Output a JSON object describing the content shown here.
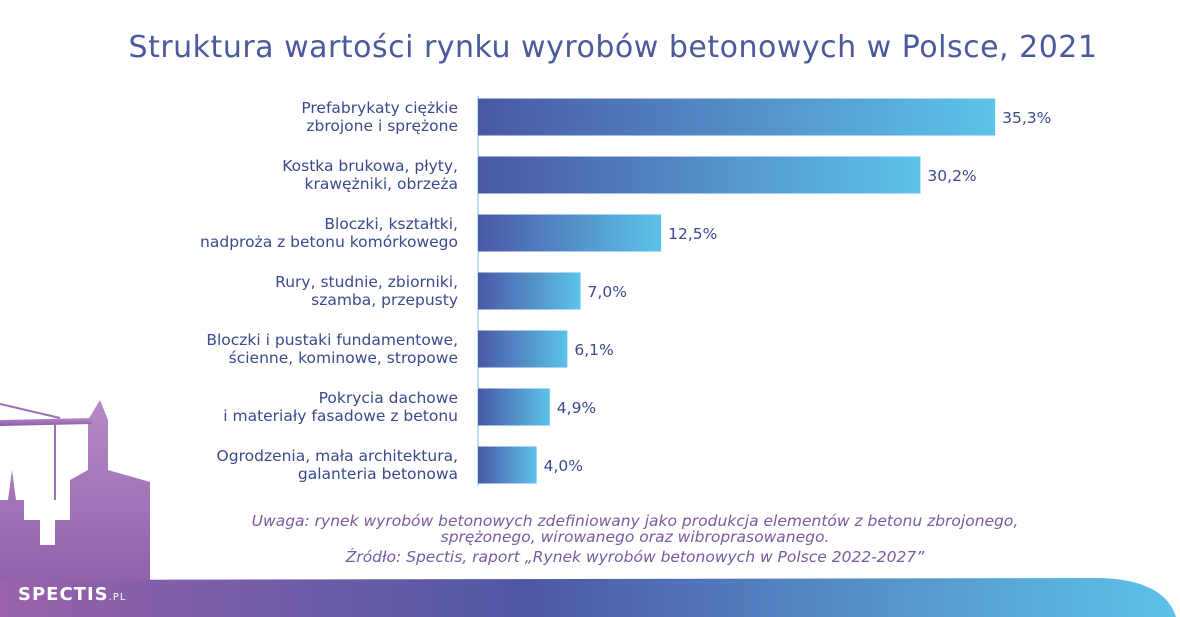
{
  "chart_data": {
    "type": "bar",
    "orientation": "horizontal",
    "title": "Struktura wartości rynku wyrobów betonowych w Polsce, 2021",
    "categories": [
      "Prefabrykaty ciężkie\nzbrojone i sprężone",
      "Kostka brukowa, płyty,\nkrawężniki, obrzeża",
      "Bloczki, kształtki,\nnadproża z betonu komórkowego",
      "Rury, studnie, zbiorniki,\nszamba, przepusty",
      "Bloczki i pustaki fundamentowe,\nścienne, kominowe, stropowe",
      "Pokrycia dachowe\ni materiały fasadowe z betonu",
      "Ogrodzenia, mała architektura,\ngalanteria betonowa"
    ],
    "values": [
      35.3,
      30.2,
      12.5,
      7.0,
      6.1,
      4.9,
      4.0
    ],
    "value_labels": [
      "35,3%",
      "30,2%",
      "12,5%",
      "7,0%",
      "6,1%",
      "4,9%",
      "4,0%"
    ],
    "color": [
      "#4a58a6",
      "#5cc3ea"
    ],
    "note": "Uwaga: rynek wyrobów betonowych zdefiniowany jako produkcja elementów z betonu zbrojonego, sprężonego, wirowanego oraz wibroprasowanego.",
    "source": "Źródło: Spectis, raport „Rynek wyrobów betonowych w Polsce 2022-2027”",
    "logo": {
      "name": "SPECTIS",
      "suffix": ".PL"
    }
  }
}
